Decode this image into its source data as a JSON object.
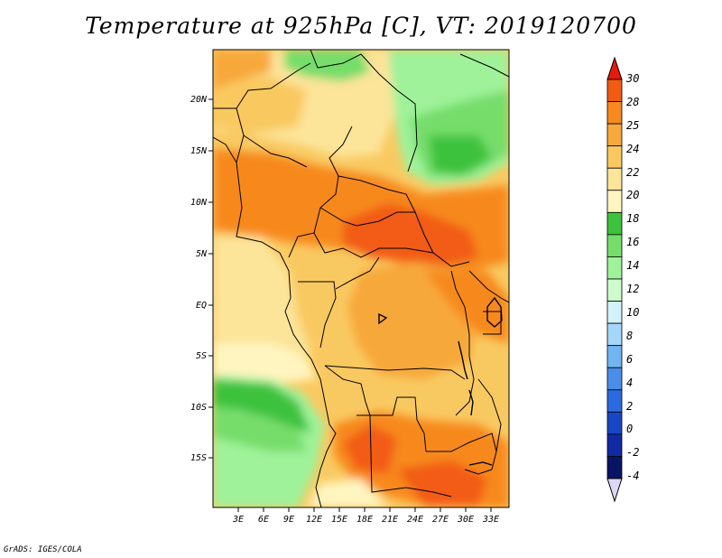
{
  "title": "Temperature at 925hPa [C], VT: 2019120700",
  "footer": "GrADS: IGES/COLA",
  "map": {
    "lat_labels": [
      "20N",
      "15N",
      "10N",
      "5N",
      "EQ",
      "5S",
      "10S",
      "15S"
    ],
    "lon_labels": [
      "3E",
      "6E",
      "9E",
      "12E",
      "15E",
      "18E",
      "21E",
      "24E",
      "27E",
      "30E",
      "33E"
    ]
  },
  "colorbar": {
    "labels": [
      "30",
      "28",
      "25",
      "24",
      "22",
      "20",
      "18",
      "16",
      "14",
      "12",
      "10",
      "8",
      "6",
      "4",
      "2",
      "0",
      "-2",
      "-4"
    ],
    "colors": [
      "#e41a0b",
      "#f25b12",
      "#f7891e",
      "#f7a83a",
      "#f9c961",
      "#fce499",
      "#fff5c0",
      "#3cc23c",
      "#76dd6b",
      "#9ff29a",
      "#cdfbcc",
      "#d2f3fb",
      "#a5d7fa",
      "#73b5f2",
      "#4a8ee8",
      "#2c6adf",
      "#1946c6",
      "#0f2aa3",
      "#0a1466"
    ],
    "below_color": "#dcd8f4"
  }
}
